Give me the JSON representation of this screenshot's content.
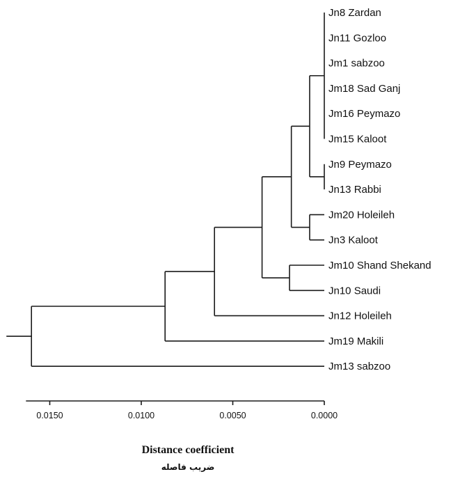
{
  "leaves": [
    {
      "label": "Jn8 Zardan"
    },
    {
      "label": "Jn11 Gozloo"
    },
    {
      "label": "Jm1 sabzoo"
    },
    {
      "label": "Jm18 Sad Ganj"
    },
    {
      "label": "Jm16 Peymazo"
    },
    {
      "label": "Jm15 Kaloot"
    },
    {
      "label": "Jn9 Peymazo"
    },
    {
      "label": "Jn13 Rabbi"
    },
    {
      "label": "Jm20 Holeileh"
    },
    {
      "label": "Jn3 Kaloot"
    },
    {
      "label": "Jm10 Shand Shekand"
    },
    {
      "label": "Jn10 Saudi"
    },
    {
      "label": "Jn12 Holeileh"
    },
    {
      "label": "Jm19 Makili"
    },
    {
      "label": "Jm13 sabzoo"
    }
  ],
  "clusters": [
    {
      "members": [
        "Jn8 Zardan",
        "Jn11 Gozloo",
        "Jm1 sabzoo",
        "Jm18 Sad Ganj",
        "Jm16 Peymazo",
        "Jm15 Kaloot"
      ],
      "height": 0.0
    },
    {
      "members": [
        "Jn9 Peymazo",
        "Jn13 Rabbi"
      ],
      "height": 0.0
    },
    {
      "members": [
        "Jm20 Holeileh",
        "Jn3 Kaloot"
      ],
      "height": 0.0008
    },
    {
      "members": [
        "Jn8 Zardan … Jm15 Kaloot",
        "Jn9 Peymazo",
        "Jn13 Rabbi"
      ],
      "height": 0.0008
    },
    {
      "members": [
        "Jn8 Zardan … Jn13 Rabbi",
        "Jm20 Holeileh",
        "Jn3 Kaloot"
      ],
      "height": 0.0018
    },
    {
      "members": [
        "Jm10 Shand Shekand",
        "Jn10 Saudi"
      ],
      "height": 0.0019
    },
    {
      "members": [
        "Jn8 Zardan … Jn3 Kaloot",
        "Jm10 Shand Shekand",
        "Jn10 Saudi"
      ],
      "height": 0.0034
    },
    {
      "members": [
        "Jn8 Zardan … Jn10 Saudi",
        "Jn12 Holeileh"
      ],
      "height": 0.006
    },
    {
      "members": [
        "Jn8 Zardan … Jn12 Holeileh",
        "Jm19 Makili"
      ],
      "height": 0.0087
    },
    {
      "members": [
        "Jn8 Zardan … Jm19 Makili",
        "Jm13 sabzoo"
      ],
      "height": 0.016
    }
  ],
  "axis": {
    "title": "Distance coefficient",
    "title_fa": "ضریب فاصله",
    "range": [
      0.0163,
      0.0
    ],
    "ticks": [
      "0.0150",
      "0.0100",
      "0.0050",
      "0.0000"
    ],
    "tick_values": [
      0.015,
      0.01,
      0.005,
      0.0
    ]
  }
}
